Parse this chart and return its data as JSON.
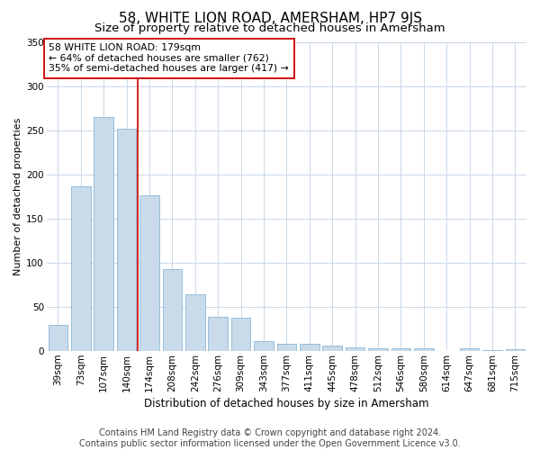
{
  "title": "58, WHITE LION ROAD, AMERSHAM, HP7 9JS",
  "subtitle": "Size of property relative to detached houses in Amersham",
  "xlabel": "Distribution of detached houses by size in Amersham",
  "ylabel": "Number of detached properties",
  "categories": [
    "39sqm",
    "73sqm",
    "107sqm",
    "140sqm",
    "174sqm",
    "208sqm",
    "242sqm",
    "276sqm",
    "309sqm",
    "343sqm",
    "377sqm",
    "411sqm",
    "445sqm",
    "478sqm",
    "512sqm",
    "546sqm",
    "580sqm",
    "614sqm",
    "647sqm",
    "681sqm",
    "715sqm"
  ],
  "values": [
    30,
    187,
    265,
    252,
    176,
    93,
    64,
    39,
    38,
    11,
    8,
    8,
    6,
    4,
    3,
    3,
    3,
    0,
    3,
    1,
    2
  ],
  "bar_color": "#c9daea",
  "bar_edge_color": "#7aadcf",
  "highlight_bar_index": 4,
  "highlight_color": "#cc0000",
  "annotation_line1": "58 WHITE LION ROAD: 179sqm",
  "annotation_line2": "← 64% of detached houses are smaller (762)",
  "annotation_line3": "35% of semi-detached houses are larger (417) →",
  "annotation_box_color": "#cc0000",
  "ylim": [
    0,
    350
  ],
  "yticks": [
    0,
    50,
    100,
    150,
    200,
    250,
    300,
    350
  ],
  "footer_line1": "Contains HM Land Registry data © Crown copyright and database right 2024.",
  "footer_line2": "Contains public sector information licensed under the Open Government Licence v3.0.",
  "bg_color": "#ffffff",
  "grid_color": "#c8d8e8",
  "title_fontsize": 11,
  "subtitle_fontsize": 9.5,
  "ylabel_fontsize": 8,
  "xlabel_fontsize": 8.5,
  "tick_fontsize": 7.5,
  "annotation_fontsize": 7.8,
  "footer_fontsize": 7
}
